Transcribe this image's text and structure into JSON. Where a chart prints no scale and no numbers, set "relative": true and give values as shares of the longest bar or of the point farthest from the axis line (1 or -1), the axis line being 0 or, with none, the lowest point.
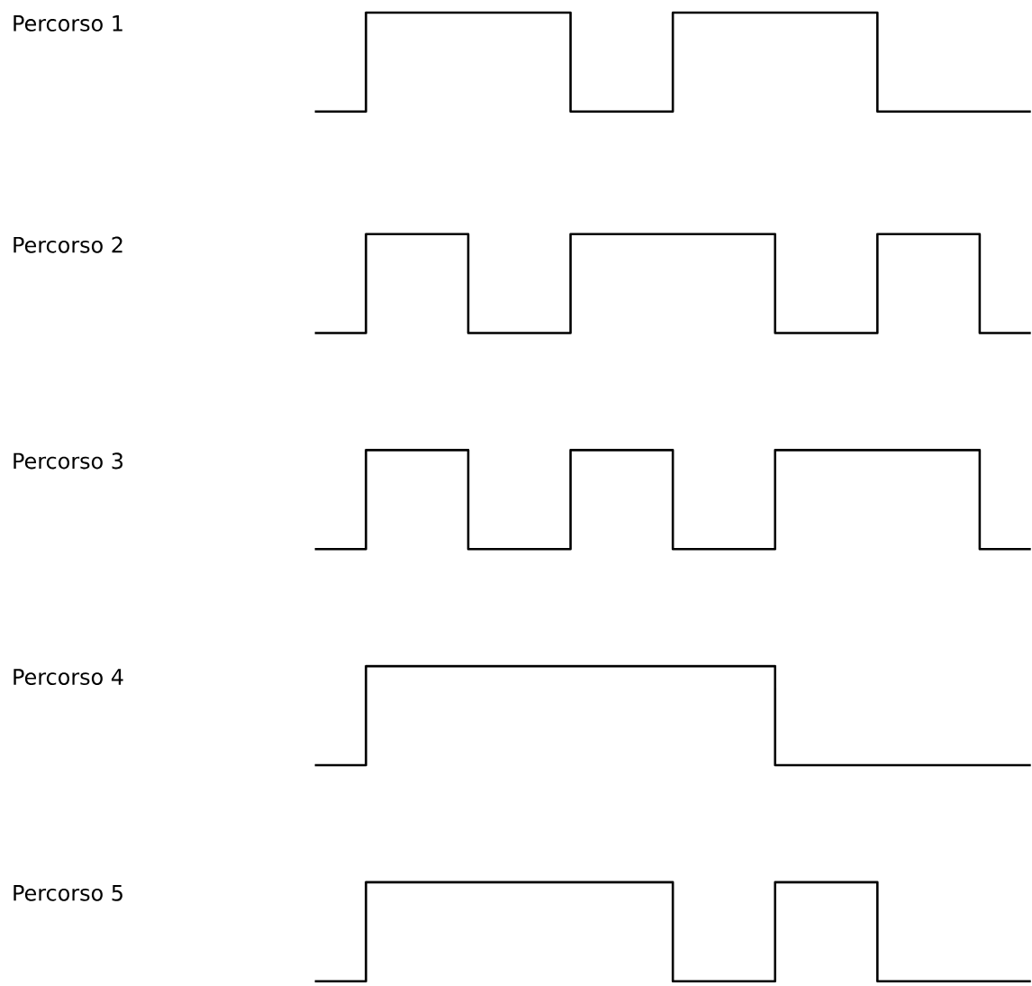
{
  "chart_data": [
    {
      "type": "step",
      "relative": true,
      "categories": [
        null,
        null,
        null,
        null,
        null,
        null,
        null,
        null,
        null,
        null,
        null,
        null,
        null,
        null,
        null
      ],
      "series": [
        {
          "name": "Percorso 1",
          "color": "#000000",
          "values": [
            0,
            1,
            1,
            1,
            1,
            0,
            0,
            1,
            1,
            1,
            1,
            0,
            0,
            0,
            0
          ]
        }
      ]
    },
    {
      "type": "step",
      "relative": true,
      "categories": [
        null,
        null,
        null,
        null,
        null,
        null,
        null,
        null,
        null,
        null,
        null,
        null,
        null,
        null,
        null
      ],
      "series": [
        {
          "name": "Percorso 2",
          "color": "#000000",
          "values": [
            0,
            1,
            1,
            0,
            0,
            1,
            1,
            1,
            1,
            0,
            0,
            1,
            1,
            0,
            0
          ]
        }
      ]
    },
    {
      "type": "step",
      "relative": true,
      "categories": [
        null,
        null,
        null,
        null,
        null,
        null,
        null,
        null,
        null,
        null,
        null,
        null,
        null,
        null,
        null
      ],
      "series": [
        {
          "name": "Percorso 3",
          "color": "#000000",
          "values": [
            0,
            1,
            1,
            0,
            0,
            1,
            1,
            0,
            0,
            1,
            1,
            1,
            1,
            0,
            0
          ]
        }
      ]
    },
    {
      "type": "step",
      "relative": true,
      "categories": [
        null,
        null,
        null,
        null,
        null,
        null,
        null,
        null,
        null,
        null,
        null,
        null,
        null,
        null,
        null
      ],
      "series": [
        {
          "name": "Percorso 4",
          "color": "#000000",
          "values": [
            0,
            1,
            1,
            1,
            1,
            1,
            1,
            1,
            1,
            0,
            0,
            0,
            0,
            0,
            0
          ]
        }
      ]
    },
    {
      "type": "step",
      "relative": true,
      "categories": [
        null,
        null,
        null,
        null,
        null,
        null,
        null,
        null,
        null,
        null,
        null,
        null,
        null,
        null,
        null
      ],
      "series": [
        {
          "name": "Percorso 5",
          "color": "#000000",
          "values": [
            0,
            1,
            1,
            1,
            1,
            1,
            1,
            0,
            0,
            1,
            1,
            0,
            0,
            0,
            0
          ]
        }
      ]
    }
  ]
}
